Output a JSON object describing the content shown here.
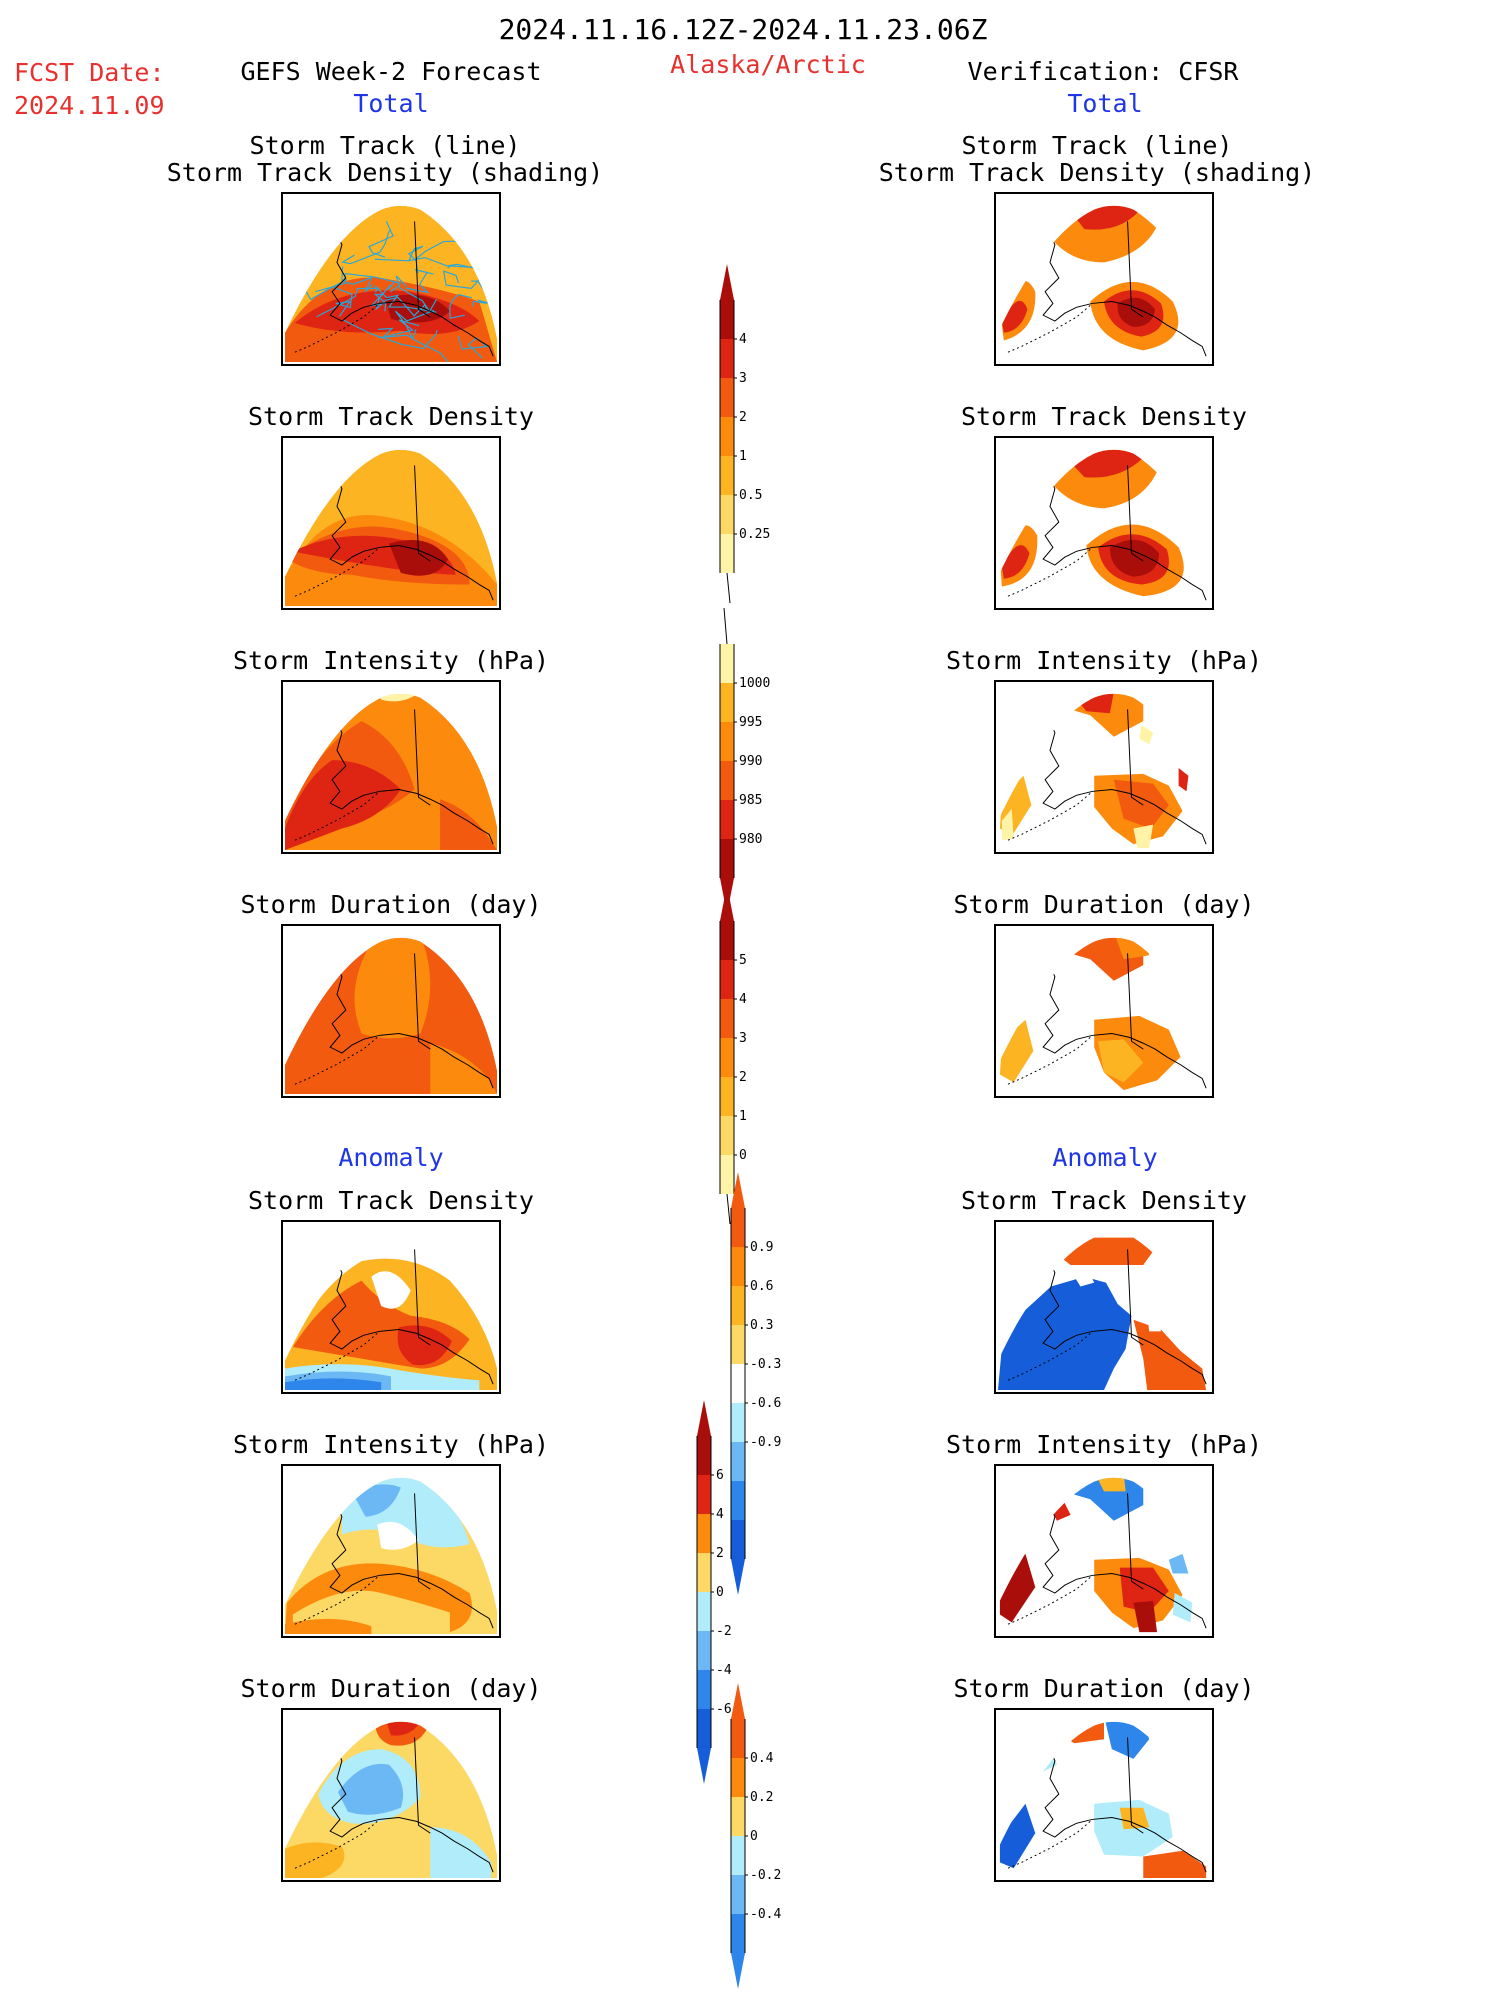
{
  "header": {
    "date_range": "2024.11.16.12Z-2024.11.23.06Z",
    "fcst_label": "FCST Date:",
    "fcst_date": "2024.11.09",
    "model": "GEFS Week-2 Forecast",
    "region": "Alaska/Arctic",
    "verification": "Verification: CFSR"
  },
  "sections": {
    "total": "Total",
    "anomaly": "Anomaly"
  },
  "panel_titles": {
    "track_line": "Storm Track (line)",
    "track_shading": "Storm Track Density (shading)",
    "density": "Storm Track Density",
    "intensity": "Storm Intensity (hPa)",
    "duration": "Storm Duration (day)"
  },
  "colors": {
    "pale": "#fff3a8",
    "light_yellow": "#fcd864",
    "light_orange": "#fcb423",
    "orange": "#fc8a0d",
    "dark_orange": "#f25a0f",
    "red": "#de2413",
    "dark_red": "#aa0e0a",
    "light_blue": "#b0ecfa",
    "mid_blue": "#6bb8f5",
    "blue": "#2e86ea",
    "dark_blue": "#165ed9",
    "track_line": "#2aa7d9"
  },
  "chart_data": [
    {
      "type": "heatmap",
      "title": "Storm Track (line) / Storm Track Density (shading)",
      "column": "GEFS Week-2 Forecast",
      "section": "Total",
      "colorbar": "total_density"
    },
    {
      "type": "heatmap",
      "title": "Storm Track (line) / Storm Track Density (shading)",
      "column": "Verification: CFSR",
      "section": "Total",
      "colorbar": "total_density"
    },
    {
      "type": "heatmap",
      "title": "Storm Track Density",
      "column": "GEFS Week-2 Forecast",
      "section": "Total",
      "colorbar": "total_density"
    },
    {
      "type": "heatmap",
      "title": "Storm Track Density",
      "column": "Verification: CFSR",
      "section": "Total",
      "colorbar": "total_density"
    },
    {
      "type": "heatmap",
      "title": "Storm Intensity (hPa)",
      "column": "GEFS Week-2 Forecast",
      "section": "Total",
      "colorbar": "total_intensity"
    },
    {
      "type": "heatmap",
      "title": "Storm Intensity (hPa)",
      "column": "Verification: CFSR",
      "section": "Total",
      "colorbar": "total_intensity"
    },
    {
      "type": "heatmap",
      "title": "Storm Duration (day)",
      "column": "GEFS Week-2 Forecast",
      "section": "Total",
      "colorbar": "total_duration"
    },
    {
      "type": "heatmap",
      "title": "Storm Duration (day)",
      "column": "Verification: CFSR",
      "section": "Total",
      "colorbar": "total_duration"
    },
    {
      "type": "heatmap",
      "title": "Storm Track Density",
      "column": "GEFS Week-2 Forecast",
      "section": "Anomaly",
      "colorbar": "anom_density"
    },
    {
      "type": "heatmap",
      "title": "Storm Track Density",
      "column": "Verification: CFSR",
      "section": "Anomaly",
      "colorbar": "anom_density"
    },
    {
      "type": "heatmap",
      "title": "Storm Intensity (hPa)",
      "column": "GEFS Week-2 Forecast",
      "section": "Anomaly",
      "colorbar": "anom_intensity"
    },
    {
      "type": "heatmap",
      "title": "Storm Intensity (hPa)",
      "column": "Verification: CFSR",
      "section": "Anomaly",
      "colorbar": "anom_intensity"
    },
    {
      "type": "heatmap",
      "title": "Storm Duration (day)",
      "column": "GEFS Week-2 Forecast",
      "section": "Anomaly",
      "colorbar": "anom_duration"
    },
    {
      "type": "heatmap",
      "title": "Storm Duration (day)",
      "column": "Verification: CFSR",
      "section": "Anomaly",
      "colorbar": "anom_duration"
    }
  ],
  "colorbars": {
    "total_density": {
      "labels": [
        "4",
        "3",
        "2",
        "1",
        "0.5",
        "0.25"
      ],
      "colors": [
        "#aa0e0a",
        "#de2413",
        "#f25a0f",
        "#fc8a0d",
        "#fcb423",
        "#fcd864",
        "#fff3a8"
      ],
      "extend_top": true
    },
    "total_intensity": {
      "labels": [
        "1000",
        "995",
        "990",
        "985",
        "980"
      ],
      "colors": [
        "#fff3a8",
        "#fcb423",
        "#fc8a0d",
        "#f25a0f",
        "#de2413",
        "#aa0e0a"
      ],
      "extend_bottom": true
    },
    "total_duration": {
      "labels": [
        "5",
        "4",
        "3",
        "2",
        "1",
        "0"
      ],
      "colors": [
        "#aa0e0a",
        "#de2413",
        "#f25a0f",
        "#fc8a0d",
        "#fcb423",
        "#fcd864",
        "#fff3a8"
      ],
      "extend_top": true
    },
    "anom_density": {
      "labels": [
        "0.9",
        "0.6",
        "0.3",
        "-0.3",
        "-0.6",
        "-0.9"
      ],
      "colors": [
        "#f25a0f",
        "#fc8a0d",
        "#fcb423",
        "#fcd864",
        "#ffffff",
        "#b0ecfa",
        "#6bb8f5",
        "#2e86ea",
        "#165ed9"
      ],
      "extend_top": true,
      "extend_bottom": true
    },
    "anom_intensity": {
      "labels": [
        "6",
        "4",
        "2",
        "0",
        "-2",
        "-4",
        "-6"
      ],
      "colors": [
        "#aa0e0a",
        "#de2413",
        "#fc8a0d",
        "#fcd864",
        "#b0ecfa",
        "#6bb8f5",
        "#2e86ea",
        "#165ed9"
      ],
      "extend_top": true,
      "extend_bottom": true
    },
    "anom_duration": {
      "labels": [
        "0.4",
        "0.2",
        "0",
        "-0.2",
        "-0.4"
      ],
      "colors": [
        "#f25a0f",
        "#fc8a0d",
        "#fcd864",
        "#b0ecfa",
        "#6bb8f5",
        "#2e86ea"
      ],
      "extend_top": true,
      "extend_bottom": true
    }
  }
}
